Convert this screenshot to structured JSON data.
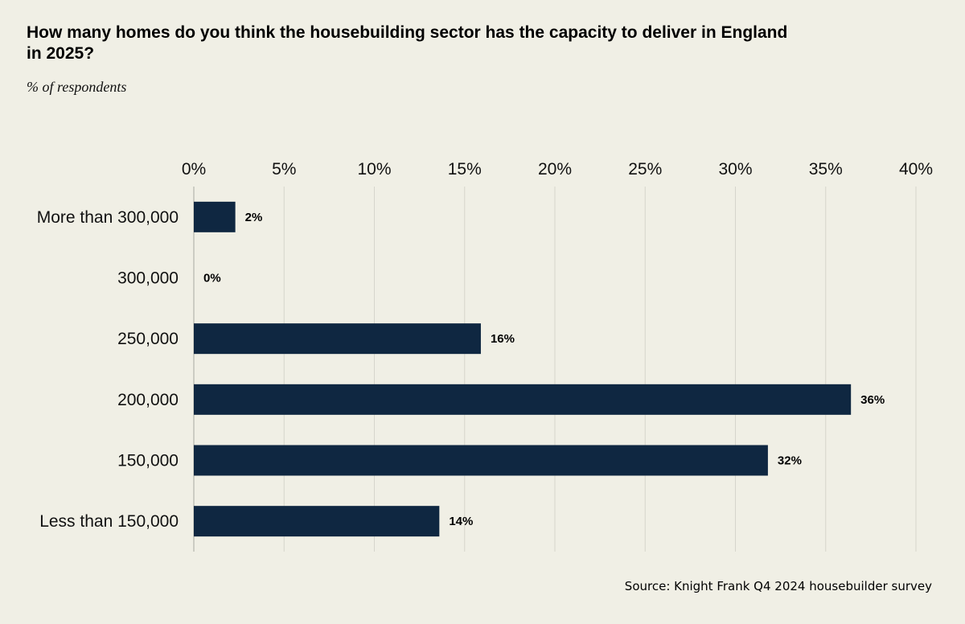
{
  "header": {
    "title": "How many homes do you think the housebuilding sector has the capacity to deliver in England in 2025?",
    "subtitle": "% of respondents"
  },
  "footer": {
    "source": "Source: Knight Frank Q4 2024 housebuilder survey"
  },
  "colors": {
    "bar": "#0f2741",
    "grid": "#d6d5cc",
    "axis": "#bdbdb5",
    "background": "#f0efe5"
  },
  "chart_data": {
    "type": "bar",
    "orientation": "horizontal",
    "title": "How many homes do you think the housebuilding sector has the capacity to deliver in England in 2025?",
    "subtitle": "% of respondents",
    "categories": [
      "More than 300,000",
      "300,000",
      "250,000",
      "200,000",
      "150,000",
      "Less than 150,000"
    ],
    "values": [
      2.3,
      0,
      15.9,
      36.4,
      31.8,
      13.6
    ],
    "data_labels": [
      "2%",
      "0%",
      "16%",
      "36%",
      "32%",
      "14%"
    ],
    "xlim": [
      0,
      40
    ],
    "xticks": [
      0,
      5,
      10,
      15,
      20,
      25,
      30,
      35,
      40
    ],
    "xtick_labels": [
      "0%",
      "5%",
      "10%",
      "15%",
      "20%",
      "25%",
      "30%",
      "35%",
      "40%"
    ],
    "axis_position": "top",
    "grid": true,
    "xlabel": "",
    "ylabel": ""
  }
}
